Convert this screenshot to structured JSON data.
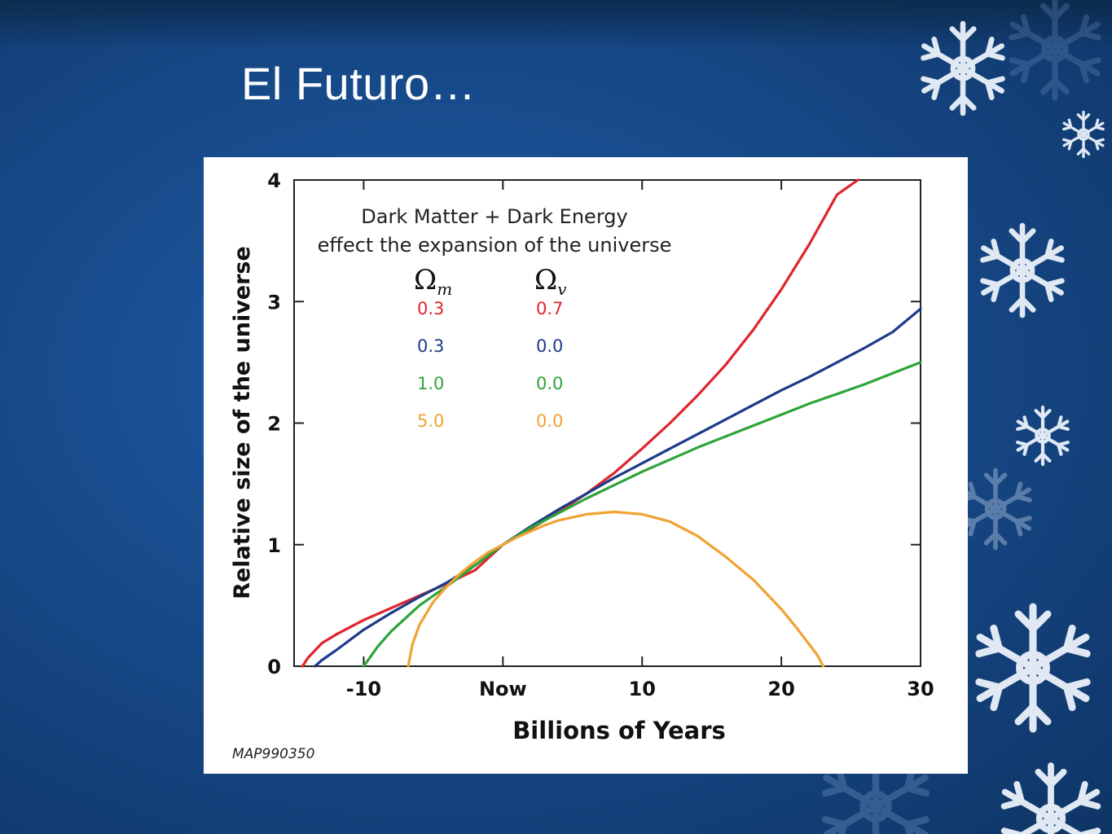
{
  "slide": {
    "title": "El Futuro…"
  },
  "decorations": {
    "icons": [
      "snowflake-icon"
    ],
    "snowflake_color": "#dfe8f3"
  },
  "chart_data": {
    "type": "line",
    "annotation": [
      "Dark Matter + Dark Energy",
      "effect the expansion of the universe"
    ],
    "xlabel": "Billions of Years",
    "ylabel": "Relative size of the universe",
    "xlim": [
      -15,
      30
    ],
    "ylim": [
      0,
      4
    ],
    "x_ticks": [
      {
        "value": -10,
        "label": "-10"
      },
      {
        "value": 0,
        "label": "Now"
      },
      {
        "value": 10,
        "label": "10"
      },
      {
        "value": 20,
        "label": "20"
      },
      {
        "value": 30,
        "label": "30"
      }
    ],
    "y_ticks": [
      {
        "value": 0,
        "label": "0"
      },
      {
        "value": 1,
        "label": "1"
      },
      {
        "value": 2,
        "label": "2"
      },
      {
        "value": 3,
        "label": "3"
      },
      {
        "value": 4,
        "label": "4"
      }
    ],
    "grid": false,
    "legend": {
      "position": "top-left",
      "headers": [
        "Ωm",
        "Ωv"
      ],
      "header_base": "Ω",
      "header_subscripts": [
        "m",
        "v"
      ]
    },
    "series": [
      {
        "omega_m": "0.3",
        "omega_v": "0.7",
        "color": "#e0242d",
        "x": [
          -14.4,
          -14,
          -13,
          -12,
          -10,
          -8,
          -6,
          -4,
          -2,
          0,
          2,
          4,
          6,
          8,
          10,
          12,
          14,
          16,
          18,
          20,
          22,
          24,
          25.5
        ],
        "y": [
          0,
          0.07,
          0.19,
          0.26,
          0.38,
          0.48,
          0.58,
          0.68,
          0.79,
          1,
          1.13,
          1.27,
          1.42,
          1.59,
          1.79,
          2.0,
          2.23,
          2.48,
          2.77,
          3.1,
          3.47,
          3.88,
          4.0
        ]
      },
      {
        "omega_m": "0.3",
        "omega_v": "0.0",
        "color": "#1d3b8a",
        "x": [
          -13.5,
          -13,
          -12,
          -10,
          -8,
          -6,
          -4,
          -2,
          0,
          2,
          4,
          6,
          8,
          10,
          12,
          14,
          16,
          18,
          20,
          22,
          24,
          26,
          28,
          30
        ],
        "y": [
          0,
          0.05,
          0.13,
          0.3,
          0.44,
          0.57,
          0.69,
          0.83,
          1,
          1.15,
          1.29,
          1.42,
          1.55,
          1.67,
          1.79,
          1.91,
          2.03,
          2.15,
          2.27,
          2.38,
          2.5,
          2.62,
          2.75,
          2.94
        ]
      },
      {
        "omega_m": "1.0",
        "omega_v": "0.0",
        "color": "#2ea43a",
        "x": [
          -10,
          -9.5,
          -9,
          -8,
          -6,
          -4,
          -2,
          0,
          2,
          4,
          6,
          8,
          10,
          12,
          14,
          16,
          18,
          20,
          22,
          24,
          26,
          28,
          30
        ],
        "y": [
          0,
          0.08,
          0.16,
          0.29,
          0.5,
          0.66,
          0.83,
          1,
          1.14,
          1.26,
          1.38,
          1.49,
          1.6,
          1.7,
          1.8,
          1.89,
          1.98,
          2.07,
          2.16,
          2.24,
          2.32,
          2.41,
          2.5
        ]
      },
      {
        "omega_m": "5.0",
        "omega_v": "0.0",
        "color": "#f0a232",
        "x": [
          -6.8,
          -6.5,
          -6,
          -5,
          -4,
          -3,
          -2,
          -1,
          0,
          1,
          2,
          3,
          4,
          6,
          8,
          10,
          12,
          14,
          16,
          18,
          20,
          21,
          22,
          22.6,
          23
        ],
        "y": [
          0,
          0.18,
          0.34,
          0.53,
          0.66,
          0.77,
          0.86,
          0.94,
          1,
          1.06,
          1.11,
          1.16,
          1.2,
          1.25,
          1.27,
          1.25,
          1.19,
          1.07,
          0.9,
          0.71,
          0.47,
          0.33,
          0.18,
          0.09,
          0
        ]
      }
    ],
    "source_label": "MAP990350"
  }
}
